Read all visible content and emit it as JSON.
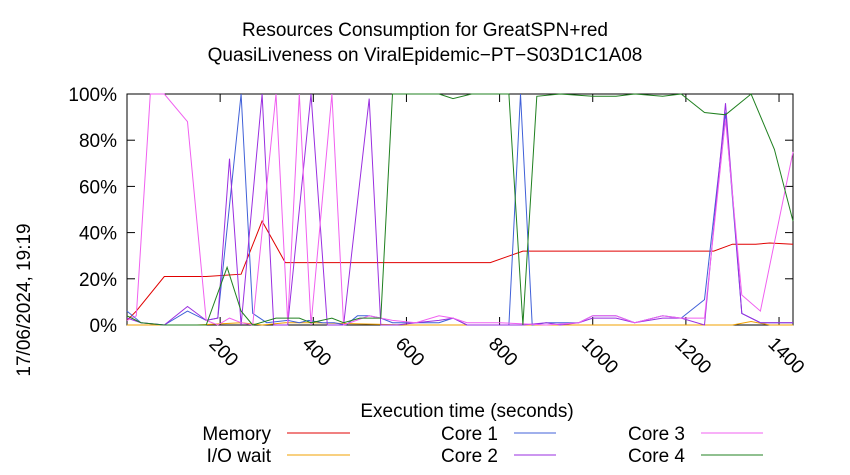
{
  "title": {
    "line1": "Resources Consumption for GreatSPN+red",
    "line2": "QuasiLiveness on ViralEpidemic−PT−S03D1C1A08"
  },
  "side_label": "17/06/2024, 19:19",
  "chart_data": {
    "type": "line",
    "title": "Resources Consumption for GreatSPN+red QuasiLiveness on ViralEpidemic−PT−S03D1C1A08",
    "xlabel": "Execution time (seconds)",
    "ylabel": "",
    "xlim": [
      0,
      1430
    ],
    "ylim": [
      0,
      100
    ],
    "x_ticks": [
      200,
      400,
      600,
      800,
      1000,
      1200,
      1400
    ],
    "x_tick_labels": [
      "200",
      "400",
      "600",
      "800",
      "1000",
      "1200",
      "1400"
    ],
    "y_ticks": [
      0,
      20,
      40,
      60,
      80,
      100
    ],
    "y_tick_labels": [
      "0%",
      "20%",
      "40%",
      "60%",
      "80%",
      "100%"
    ],
    "grid": false,
    "legend_position": "bottom",
    "series": [
      {
        "name": "Memory",
        "color": "#e00000",
        "points": [
          [
            0,
            2
          ],
          [
            20,
            6
          ],
          [
            80,
            21
          ],
          [
            170,
            21
          ],
          [
            245,
            22
          ],
          [
            290,
            45
          ],
          [
            340,
            27
          ],
          [
            400,
            27
          ],
          [
            600,
            27
          ],
          [
            780,
            27
          ],
          [
            850,
            32
          ],
          [
            1000,
            32
          ],
          [
            1200,
            32
          ],
          [
            1260,
            32
          ],
          [
            1300,
            35
          ],
          [
            1350,
            35
          ],
          [
            1380,
            35.5
          ],
          [
            1430,
            35
          ]
        ]
      },
      {
        "name": "I/O wait",
        "color": "#f0a000",
        "points": [
          [
            0,
            0
          ],
          [
            60,
            0
          ],
          [
            150,
            0
          ],
          [
            245,
            1
          ],
          [
            290,
            0
          ],
          [
            340,
            1
          ],
          [
            400,
            1
          ],
          [
            600,
            0
          ],
          [
            800,
            0
          ],
          [
            1000,
            0
          ],
          [
            1300,
            0
          ],
          [
            1340,
            1.5
          ],
          [
            1380,
            0
          ],
          [
            1430,
            0
          ]
        ]
      },
      {
        "name": "Core 1",
        "color": "#4060d8",
        "points": [
          [
            0,
            6
          ],
          [
            30,
            1
          ],
          [
            80,
            0
          ],
          [
            130,
            6
          ],
          [
            170,
            2
          ],
          [
            195,
            3
          ],
          [
            245,
            100
          ],
          [
            270,
            5
          ],
          [
            300,
            1
          ],
          [
            345,
            2
          ],
          [
            370,
            1
          ],
          [
            390,
            2
          ],
          [
            420,
            1
          ],
          [
            445,
            1
          ],
          [
            470,
            0
          ],
          [
            495,
            4
          ],
          [
            520,
            4
          ],
          [
            545,
            3
          ],
          [
            570,
            1
          ],
          [
            620,
            1
          ],
          [
            670,
            1
          ],
          [
            700,
            3
          ],
          [
            730,
            0
          ],
          [
            780,
            0
          ],
          [
            820,
            0
          ],
          [
            845,
            100
          ],
          [
            870,
            0
          ],
          [
            900,
            1
          ],
          [
            930,
            1
          ],
          [
            970,
            1
          ],
          [
            1000,
            4
          ],
          [
            1050,
            4
          ],
          [
            1090,
            1
          ],
          [
            1150,
            4
          ],
          [
            1190,
            3
          ],
          [
            1240,
            11
          ],
          [
            1285,
            92
          ],
          [
            1320,
            5
          ],
          [
            1360,
            1
          ],
          [
            1400,
            1
          ],
          [
            1430,
            1
          ]
        ]
      },
      {
        "name": "Core 2",
        "color": "#9a2ee0",
        "points": [
          [
            0,
            3
          ],
          [
            30,
            1
          ],
          [
            80,
            0
          ],
          [
            130,
            8
          ],
          [
            170,
            2
          ],
          [
            195,
            3
          ],
          [
            220,
            72
          ],
          [
            245,
            0
          ],
          [
            290,
            100
          ],
          [
            315,
            0
          ],
          [
            345,
            0
          ],
          [
            395,
            100
          ],
          [
            430,
            0
          ],
          [
            465,
            0
          ],
          [
            520,
            98
          ],
          [
            545,
            0
          ],
          [
            580,
            0
          ],
          [
            620,
            1
          ],
          [
            670,
            2
          ],
          [
            700,
            3
          ],
          [
            730,
            0
          ],
          [
            800,
            0
          ],
          [
            850,
            0
          ],
          [
            900,
            1
          ],
          [
            930,
            0
          ],
          [
            970,
            1
          ],
          [
            1000,
            3
          ],
          [
            1050,
            3
          ],
          [
            1090,
            1
          ],
          [
            1150,
            3
          ],
          [
            1190,
            3
          ],
          [
            1240,
            0
          ],
          [
            1285,
            96
          ],
          [
            1320,
            5
          ],
          [
            1360,
            1
          ],
          [
            1400,
            1
          ],
          [
            1430,
            1
          ]
        ]
      },
      {
        "name": "Core 3",
        "color": "#f060f0",
        "points": [
          [
            0,
            2
          ],
          [
            20,
            4
          ],
          [
            50,
            100
          ],
          [
            80,
            100
          ],
          [
            130,
            88
          ],
          [
            170,
            2
          ],
          [
            195,
            0
          ],
          [
            220,
            3
          ],
          [
            245,
            1
          ],
          [
            270,
            0
          ],
          [
            320,
            100
          ],
          [
            345,
            1
          ],
          [
            370,
            100
          ],
          [
            395,
            0
          ],
          [
            440,
            100
          ],
          [
            465,
            0
          ],
          [
            520,
            4
          ],
          [
            545,
            3
          ],
          [
            570,
            2
          ],
          [
            620,
            1
          ],
          [
            670,
            4
          ],
          [
            700,
            3
          ],
          [
            730,
            1
          ],
          [
            800,
            1
          ],
          [
            900,
            0
          ],
          [
            970,
            1
          ],
          [
            1000,
            4
          ],
          [
            1050,
            4
          ],
          [
            1090,
            1
          ],
          [
            1150,
            4
          ],
          [
            1190,
            3
          ],
          [
            1240,
            3
          ],
          [
            1285,
            89
          ],
          [
            1320,
            13
          ],
          [
            1360,
            6
          ],
          [
            1430,
            75
          ]
        ]
      },
      {
        "name": "Core 4",
        "color": "#208020",
        "points": [
          [
            0,
            4
          ],
          [
            30,
            1
          ],
          [
            80,
            0
          ],
          [
            130,
            0
          ],
          [
            170,
            0
          ],
          [
            215,
            25
          ],
          [
            245,
            6
          ],
          [
            270,
            0
          ],
          [
            320,
            3
          ],
          [
            345,
            3
          ],
          [
            370,
            3
          ],
          [
            395,
            1
          ],
          [
            440,
            3
          ],
          [
            465,
            1
          ],
          [
            500,
            3
          ],
          [
            545,
            3
          ],
          [
            570,
            100
          ],
          [
            620,
            100
          ],
          [
            670,
            100
          ],
          [
            700,
            98
          ],
          [
            740,
            100
          ],
          [
            780,
            100
          ],
          [
            820,
            100
          ],
          [
            850,
            0
          ],
          [
            880,
            99
          ],
          [
            930,
            100
          ],
          [
            1000,
            99
          ],
          [
            1050,
            99
          ],
          [
            1090,
            100
          ],
          [
            1150,
            99
          ],
          [
            1190,
            100
          ],
          [
            1240,
            92
          ],
          [
            1285,
            91
          ],
          [
            1340,
            100
          ],
          [
            1390,
            76
          ],
          [
            1430,
            45
          ]
        ]
      }
    ]
  }
}
